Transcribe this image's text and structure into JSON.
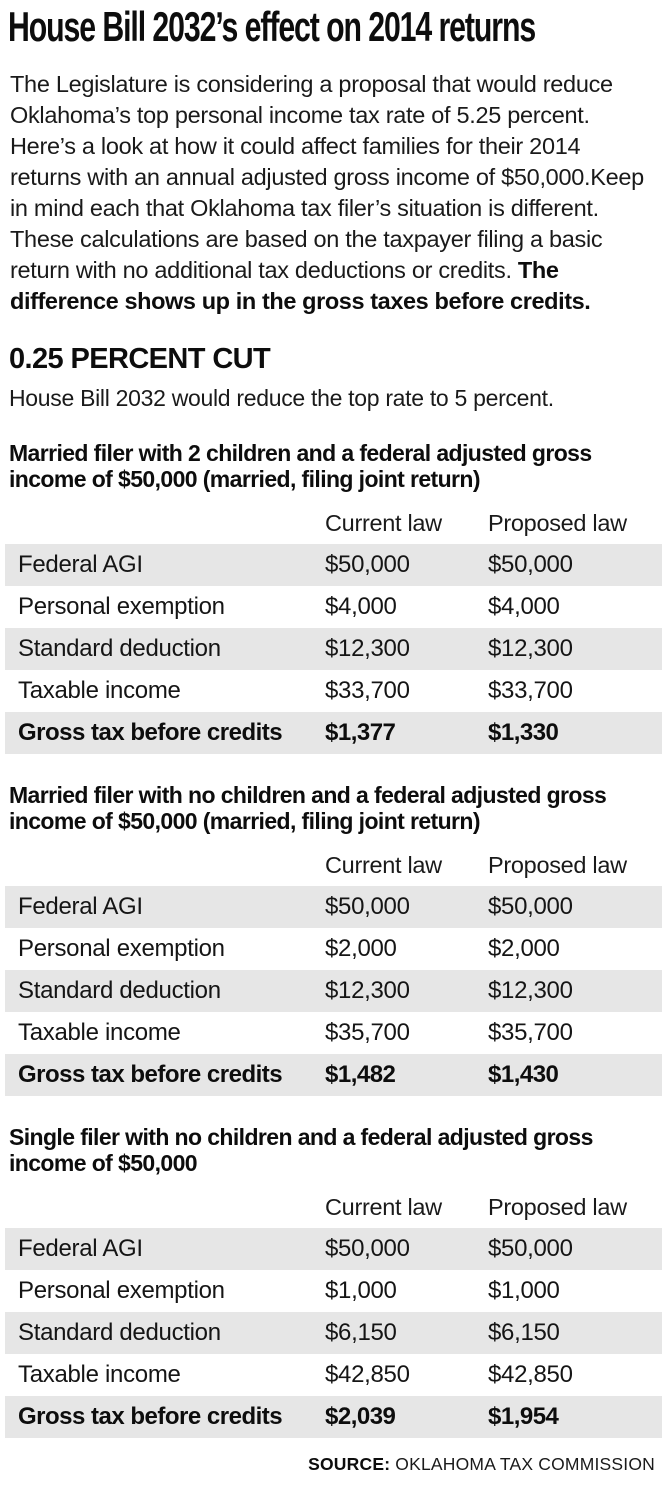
{
  "header": {
    "title": "House Bill 2032’s effect on 2014 returns"
  },
  "intro": {
    "text": "The Legislature is considering a proposal that would reduce Oklahoma’s top personal income tax rate of 5.25 percent. Here’s a look at how it could affect families for their 2014 returns with an annual adjusted gross income of $50,000.Keep in mind each that Oklahoma tax filer’s situation is different. These calculations are based on the taxpayer filing a basic return with no additional tax deductions or credits. ",
    "emphasis": "The difference shows up in the gross taxes before credits."
  },
  "section": {
    "heading": "0.25 PERCENT CUT",
    "subtitle": "House Bill 2032 would reduce the top rate to 5 percent."
  },
  "columns": {
    "current": "Current law",
    "proposed": "Proposed law"
  },
  "tables": [
    {
      "title": "Married filer with 2 children and a federal adjusted gross income of $50,000 (married, filing joint return)",
      "rows": [
        {
          "label": "Federal AGI",
          "current": "$50,000",
          "proposed": "$50,000"
        },
        {
          "label": "Personal exemption",
          "current": "$4,000",
          "proposed": "$4,000"
        },
        {
          "label": "Standard deduction",
          "current": "$12,300",
          "proposed": "$12,300"
        },
        {
          "label": "Taxable income",
          "current": "$33,700",
          "proposed": "$33,700"
        },
        {
          "label": "Gross tax before credits",
          "current": "$1,377",
          "proposed": "$1,330"
        }
      ]
    },
    {
      "title": "Married filer with no children and a federal adjusted gross income of $50,000 (married, filing joint return)",
      "rows": [
        {
          "label": "Federal AGI",
          "current": "$50,000",
          "proposed": "$50,000"
        },
        {
          "label": "Personal exemption",
          "current": "$2,000",
          "proposed": "$2,000"
        },
        {
          "label": "Standard deduction",
          "current": "$12,300",
          "proposed": "$12,300"
        },
        {
          "label": "Taxable income",
          "current": "$35,700",
          "proposed": "$35,700"
        },
        {
          "label": "Gross tax before credits",
          "current": "$1,482",
          "proposed": "$1,430"
        }
      ]
    },
    {
      "title": "Single filer with no children and a federal adjusted gross income of $50,000",
      "rows": [
        {
          "label": "Federal AGI",
          "current": "$50,000",
          "proposed": "$50,000"
        },
        {
          "label": "Personal exemption",
          "current": "$1,000",
          "proposed": "$1,000"
        },
        {
          "label": "Standard deduction",
          "current": "$6,150",
          "proposed": "$6,150"
        },
        {
          "label": "Taxable income",
          "current": "$42,850",
          "proposed": "$42,850"
        },
        {
          "label": "Gross tax before credits",
          "current": "$2,039",
          "proposed": "$1,954"
        }
      ]
    }
  ],
  "source": {
    "label": "SOURCE:",
    "value": " OKLAHOMA TAX COMMISSION"
  },
  "colors": {
    "row_shade": "#e6e6e6",
    "text": "#161616",
    "background": "#ffffff"
  }
}
